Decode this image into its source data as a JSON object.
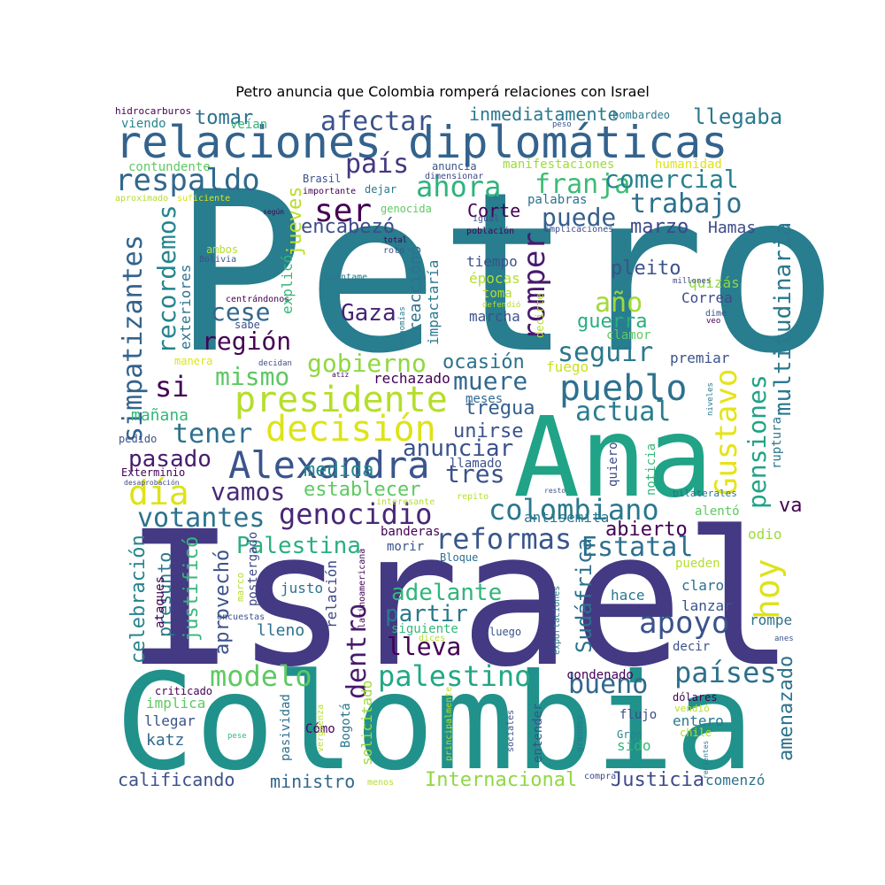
{
  "title": "Petro anuncia que Colombia romperá relaciones con Israel",
  "palette": [
    "#440154",
    "#443983",
    "#31688e",
    "#21918c",
    "#35b779",
    "#90d743",
    "#fde725"
  ],
  "words": [
    {
      "text": "Petro",
      "color": "#287d8e"
    },
    {
      "text": "Israel",
      "color": "#443983"
    },
    {
      "text": "Colombia",
      "color": "#21918c"
    },
    {
      "text": "Ana",
      "color": "#20a386"
    },
    {
      "text": "relaciones diplomáticas",
      "color": "#33638d"
    },
    {
      "text": "Alexandra",
      "color": "#39558c"
    },
    {
      "text": "decisión",
      "color": "#dde318"
    },
    {
      "text": "presidente",
      "color": "#b5de2b"
    },
    {
      "text": "pueblo",
      "color": "#2d708e"
    },
    {
      "text": "genocidio",
      "color": "#482878"
    },
    {
      "text": "colombiano",
      "color": "#2a788e"
    },
    {
      "text": "reformas",
      "color": "#39568c"
    },
    {
      "text": "respaldo",
      "color": "#31688e"
    },
    {
      "text": "afectar",
      "color": "#3b528b"
    },
    {
      "text": "ahora",
      "color": "#2eb37c"
    },
    {
      "text": "país",
      "color": "#453781"
    },
    {
      "text": "franja",
      "color": "#3dbc74"
    },
    {
      "text": "comercial",
      "color": "#26818e"
    },
    {
      "text": "trabajo",
      "color": "#2d708e"
    },
    {
      "text": "ser",
      "color": "#440154"
    },
    {
      "text": "puede",
      "color": "#355f8d"
    },
    {
      "text": "marzo",
      "color": "#3f4889"
    },
    {
      "text": "Hamas",
      "color": "#3e4a89"
    },
    {
      "text": "jueves",
      "color": "#b8de29"
    },
    {
      "text": "encabezó",
      "color": "#3e4c8a"
    },
    {
      "text": "Corte",
      "color": "#440154"
    },
    {
      "text": "romper",
      "color": "#481a6c"
    },
    {
      "text": "año",
      "color": "#a2da37"
    },
    {
      "text": "pleito",
      "color": "#3b528b"
    },
    {
      "text": "Gaza",
      "color": "#482475"
    },
    {
      "text": "cese",
      "color": "#31688e"
    },
    {
      "text": "región",
      "color": "#440154"
    },
    {
      "text": "gobierno",
      "color": "#90d743"
    },
    {
      "text": "mismo",
      "color": "#5cc863"
    },
    {
      "text": "si",
      "color": "#440154"
    },
    {
      "text": "seguir",
      "color": "#2a788e"
    },
    {
      "text": "muere",
      "color": "#31688e"
    },
    {
      "text": "actual",
      "color": "#287d8e"
    },
    {
      "text": "ocasión",
      "color": "#2c718e"
    },
    {
      "text": "tener",
      "color": "#2d708e"
    },
    {
      "text": "pasado",
      "color": "#481b6d"
    },
    {
      "text": "medida",
      "color": "#25858e"
    },
    {
      "text": "anunciar",
      "color": "#3b528b"
    },
    {
      "text": "día",
      "color": "#dde318"
    },
    {
      "text": "vamos",
      "color": "#482878"
    },
    {
      "text": "votantes",
      "color": "#2c728e"
    },
    {
      "text": "tres",
      "color": "#3b528b"
    },
    {
      "text": "establecer",
      "color": "#5ec962"
    },
    {
      "text": "Palestina",
      "color": "#29af7f"
    },
    {
      "text": "Estatal",
      "color": "#2d708e"
    },
    {
      "text": "hoy",
      "color": "#dde318"
    },
    {
      "text": "apoyo",
      "color": "#3b528b"
    },
    {
      "text": "modelo",
      "color": "#5ec962"
    },
    {
      "text": "palestino",
      "color": "#22a884"
    },
    {
      "text": "bueno",
      "color": "#31688e"
    },
    {
      "text": "países",
      "color": "#2d708e"
    },
    {
      "text": "adelante",
      "color": "#31b57b"
    },
    {
      "text": "partir",
      "color": "#2a788e"
    },
    {
      "text": "lleva",
      "color": "#440154"
    },
    {
      "text": "dentro",
      "color": "#481a6c"
    },
    {
      "text": "unirse",
      "color": "#3b528b"
    },
    {
      "text": "tregua",
      "color": "#355f8d"
    },
    {
      "text": "Gustavo",
      "color": "#e5e419"
    },
    {
      "text": "pensiones",
      "color": "#20a386"
    },
    {
      "text": "multitudinaria",
      "color": "#2a788e"
    },
    {
      "text": "simpatizantes",
      "color": "#33638d"
    },
    {
      "text": "recordemos",
      "color": "#25848e"
    },
    {
      "text": "Sudáfrica",
      "color": "#2d708e"
    },
    {
      "text": "abierto",
      "color": "#440154"
    },
    {
      "text": "amenazado",
      "color": "#2c728e"
    },
    {
      "text": "Justicia",
      "color": "#3e4a89"
    },
    {
      "text": "Internacional",
      "color": "#90d743"
    },
    {
      "text": "ministro",
      "color": "#31688e"
    },
    {
      "text": "calificando",
      "color": "#3b528b"
    },
    {
      "text": "llegaba",
      "color": "#2a788e"
    },
    {
      "text": "tomar",
      "color": "#2c728e"
    },
    {
      "text": "inmediatamente",
      "color": "#2a788e"
    },
    {
      "text": "guerra",
      "color": "#29af7f"
    },
    {
      "text": "Correa",
      "color": "#3e4a89"
    },
    {
      "text": "quizás",
      "color": "#90d743"
    },
    {
      "text": "premiar",
      "color": "#3b528b"
    },
    {
      "text": "fuego",
      "color": "#cae11f"
    },
    {
      "text": "tiempo",
      "color": "#3b528b"
    },
    {
      "text": "épocas",
      "color": "#b5de2b"
    },
    {
      "text": "toma",
      "color": "#b5de2b"
    },
    {
      "text": "marcha",
      "color": "#3b528b"
    },
    {
      "text": "reacciónó",
      "color": "#2c728e"
    },
    {
      "text": "impactaría",
      "color": "#2a788e"
    },
    {
      "text": "rechazado",
      "color": "#440154"
    },
    {
      "text": "meses",
      "color": "#31688e"
    },
    {
      "text": "llamado",
      "color": "#3b528b"
    },
    {
      "text": "quiero",
      "color": "#3e4a89"
    },
    {
      "text": "noticia",
      "color": "#35b779"
    },
    {
      "text": "ruptura",
      "color": "#2a788e"
    },
    {
      "text": "va",
      "color": "#440154"
    },
    {
      "text": "alentó",
      "color": "#5ec962"
    },
    {
      "text": "odio",
      "color": "#9fda3a"
    },
    {
      "text": "pueden",
      "color": "#b5de2b"
    },
    {
      "text": "claro",
      "color": "#2d708e"
    },
    {
      "text": "lanzar",
      "color": "#3b528b"
    },
    {
      "text": "hace",
      "color": "#2a788e"
    },
    {
      "text": "rompe",
      "color": "#2d708e"
    },
    {
      "text": "decir",
      "color": "#3b528b"
    },
    {
      "text": "condenado",
      "color": "#440154"
    },
    {
      "text": "entero",
      "color": "#2a788e"
    },
    {
      "text": "sido",
      "color": "#35b779"
    },
    {
      "text": "Gran",
      "color": "#25848e"
    },
    {
      "text": "comenzó",
      "color": "#2c728e"
    },
    {
      "text": "entender",
      "color": "#3b528b"
    },
    {
      "text": "flujo",
      "color": "#3e4a89"
    },
    {
      "text": "dólares",
      "color": "#440154"
    },
    {
      "text": "vendió",
      "color": "#b5de2b"
    },
    {
      "text": "chile",
      "color": "#b5de2b"
    },
    {
      "text": "morir",
      "color": "#3b528b"
    },
    {
      "text": "banderas",
      "color": "#440154"
    },
    {
      "text": "antisemita",
      "color": "#2a788e"
    },
    {
      "text": "justo",
      "color": "#2c728e"
    },
    {
      "text": "relación",
      "color": "#3e4a89"
    },
    {
      "text": "siguiente",
      "color": "#35b779"
    },
    {
      "text": "luego",
      "color": "#3b528b"
    },
    {
      "text": "Bloque",
      "color": "#2d708e"
    },
    {
      "text": "latinoamericana",
      "color": "#440154"
    },
    {
      "text": "exportaciones",
      "color": "#2a788e"
    },
    {
      "text": "dices",
      "color": "#b5de2b"
    },
    {
      "text": "lleno",
      "color": "#2c728e"
    },
    {
      "text": "aprovechó",
      "color": "#3b528b"
    },
    {
      "text": "justificó",
      "color": "#35b779"
    },
    {
      "text": "postergado",
      "color": "#3e4a89"
    },
    {
      "text": "presunto",
      "color": "#2a788e"
    },
    {
      "text": "celebración",
      "color": "#25848e"
    },
    {
      "text": "ataques",
      "color": "#440154"
    },
    {
      "text": "marco",
      "color": "#b5de2b"
    },
    {
      "text": "encuestas",
      "color": "#3b528b"
    },
    {
      "text": "implica",
      "color": "#5ec962"
    },
    {
      "text": "criticado",
      "color": "#440154"
    },
    {
      "text": "llegar",
      "color": "#3b528b"
    },
    {
      "text": "katz",
      "color": "#31688e"
    },
    {
      "text": "pasividad",
      "color": "#2c728e"
    },
    {
      "text": "solicitado",
      "color": "#9fda3a"
    },
    {
      "text": "Bogotá",
      "color": "#2a788e"
    },
    {
      "text": "Cómo",
      "color": "#440154"
    },
    {
      "text": "principalmente",
      "color": "#b5de2b"
    },
    {
      "text": "sociales",
      "color": "#3b528b"
    },
    {
      "text": "grandes",
      "color": "#2a788e"
    },
    {
      "text": "compra",
      "color": "#3e4a89"
    },
    {
      "text": "menos",
      "color": "#b5de2b"
    },
    {
      "text": "vergüenza",
      "color": "#b5de2b"
    },
    {
      "text": "pese",
      "color": "#35b779"
    },
    {
      "text": "recientes",
      "color": "#2a788e"
    },
    {
      "text": "anes",
      "color": "#3b528b"
    },
    {
      "text": "hidrocarburos",
      "color": "#440154"
    },
    {
      "text": "viendo",
      "color": "#25848e"
    },
    {
      "text": "veían",
      "color": "#35b779"
    },
    {
      "text": "contundente",
      "color": "#5ec962"
    },
    {
      "text": "aproximado",
      "color": "#b5de2b"
    },
    {
      "text": "suficiente",
      "color": "#dde318"
    },
    {
      "text": "Brasil",
      "color": "#3b528b"
    },
    {
      "text": "importante",
      "color": "#440154"
    },
    {
      "text": "dimensionar",
      "color": "#3e4a89"
    },
    {
      "text": "dejar",
      "color": "#2a788e"
    },
    {
      "text": "anuncia",
      "color": "#3b528b"
    },
    {
      "text": "genocida",
      "color": "#5ec962"
    },
    {
      "text": "según",
      "color": "#440154"
    },
    {
      "text": "peso",
      "color": "#3b528b"
    },
    {
      "text": "bombardeo",
      "color": "#2a788e"
    },
    {
      "text": "manifestaciones",
      "color": "#9fda3a"
    },
    {
      "text": "humanidad",
      "color": "#dde318"
    },
    {
      "text": "palabras",
      "color": "#2c728e"
    },
    {
      "text": "igual",
      "color": "#3b528b"
    },
    {
      "text": "población",
      "color": "#440154"
    },
    {
      "text": "implicaciones",
      "color": "#3e4a89"
    },
    {
      "text": "ambos",
      "color": "#b5de2b"
    },
    {
      "text": "Bolivia",
      "color": "#3b528b"
    },
    {
      "text": "total",
      "color": "#440154"
    },
    {
      "text": "roto",
      "color": "#3b528b"
    },
    {
      "text": "Cuéntame",
      "color": "#2a788e"
    },
    {
      "text": "millones",
      "color": "#3e4a89"
    },
    {
      "text": "defendió",
      "color": "#b5de2b"
    },
    {
      "text": "centrándonos",
      "color": "#440154"
    },
    {
      "text": "explicó",
      "color": "#35b779"
    },
    {
      "text": "exteriores",
      "color": "#2c728e"
    },
    {
      "text": "sabe",
      "color": "#3b528b"
    },
    {
      "text": "manera",
      "color": "#dde318"
    },
    {
      "text": "decidan",
      "color": "#3e4a89"
    },
    {
      "text": "atiz",
      "color": "#440154"
    },
    {
      "text": "economías",
      "color": "#2a788e"
    },
    {
      "text": "decirte",
      "color": "#b5de2b"
    },
    {
      "text": "dime",
      "color": "#3b528b"
    },
    {
      "text": "veo",
      "color": "#440154"
    },
    {
      "text": "clamor",
      "color": "#5ec962"
    },
    {
      "text": "niveles",
      "color": "#2a788e"
    },
    {
      "text": "mañana",
      "color": "#35b779"
    },
    {
      "text": "pedido",
      "color": "#3b528b"
    },
    {
      "text": "Exterminio",
      "color": "#440154"
    },
    {
      "text": "desaprobación",
      "color": "#3e4a89"
    },
    {
      "text": "interesante",
      "color": "#b5de2b"
    },
    {
      "text": "repito",
      "color": "#b5de2b"
    },
    {
      "text": "resto",
      "color": "#3b528b"
    },
    {
      "text": "bilaterales",
      "color": "#2c728e"
    }
  ]
}
